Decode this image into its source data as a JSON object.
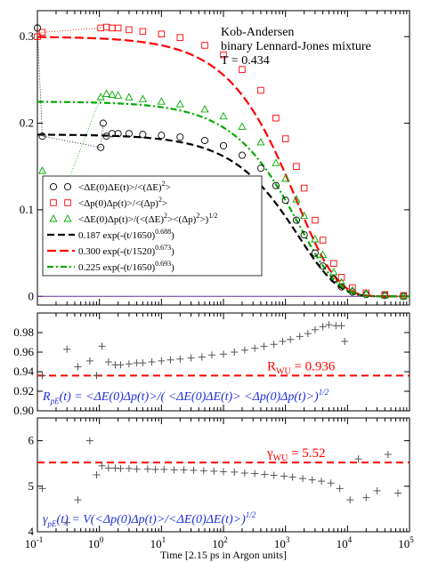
{
  "chart_data": [
    {
      "type": "scatter",
      "panel": "top",
      "title": "",
      "annotation_lines": [
        "Kob-Andersen",
        "binary Lennard-Jones mixture",
        "T = 0.434"
      ],
      "xscale": "log",
      "xlim": [
        0.1,
        100000
      ],
      "ylim": [
        -0.01,
        0.33
      ],
      "yticks": [
        0,
        0.1,
        0.2,
        0.3
      ],
      "ytick_labels": [
        "0",
        "0.1",
        "0.2",
        "0.3"
      ],
      "grid": false,
      "legend_position": "lower-left",
      "series": [
        {
          "name": "<ΔE(0)ΔE(t)>/<(ΔE)²>",
          "kind": "markers",
          "marker": "circle",
          "color": "#000000",
          "points": [
            [
              0.1,
              0.31
            ],
            [
              0.12,
              0.185
            ],
            [
              1.05,
              0.172
            ],
            [
              1.15,
              0.2
            ],
            [
              1.3,
              0.185
            ],
            [
              1.6,
              0.188
            ],
            [
              2,
              0.188
            ],
            [
              3,
              0.188
            ],
            [
              5,
              0.187
            ],
            [
              10,
              0.186
            ],
            [
              20,
              0.184
            ],
            [
              50,
              0.18
            ],
            [
              100,
              0.174
            ],
            [
              200,
              0.163
            ],
            [
              400,
              0.148
            ],
            [
              700,
              0.128
            ],
            [
              1000,
              0.111
            ],
            [
              1500,
              0.088
            ],
            [
              2000,
              0.071
            ],
            [
              3000,
              0.05
            ],
            [
              4000,
              0.035
            ],
            [
              6000,
              0.02
            ],
            [
              8000,
              0.011
            ],
            [
              12000,
              0.005
            ],
            [
              20000,
              0.002
            ],
            [
              40000,
              0.001
            ],
            [
              80000,
              0.0
            ]
          ]
        },
        {
          "name": "<Δp(0)Δp(t)>/<(Δp)²>",
          "kind": "markers",
          "marker": "square",
          "color": "#ff0000",
          "points": [
            [
              0.1,
              0.3
            ],
            [
              0.12,
              0.305
            ],
            [
              1.05,
              0.31
            ],
            [
              1.3,
              0.311
            ],
            [
              1.6,
              0.31
            ],
            [
              2,
              0.31
            ],
            [
              3,
              0.308
            ],
            [
              5,
              0.306
            ],
            [
              10,
              0.303
            ],
            [
              20,
              0.299
            ],
            [
              50,
              0.29
            ],
            [
              100,
              0.279
            ],
            [
              200,
              0.262
            ],
            [
              400,
              0.238
            ],
            [
              700,
              0.206
            ],
            [
              1000,
              0.182
            ],
            [
              1500,
              0.15
            ],
            [
              2000,
              0.125
            ],
            [
              3000,
              0.088
            ],
            [
              4000,
              0.065
            ],
            [
              6000,
              0.038
            ],
            [
              8000,
              0.022
            ],
            [
              12000,
              0.01
            ],
            [
              20000,
              0.004
            ],
            [
              40000,
              0.002
            ],
            [
              80000,
              0.001
            ]
          ]
        },
        {
          "name": "<ΔE(0)Δp(t)>/(<(ΔE)²><(Δp)²>)^1/2",
          "kind": "markers",
          "marker": "triangle",
          "color": "#00aa00",
          "points": [
            [
              0.12,
              0.145
            ],
            [
              0.2,
              0.1
            ],
            [
              0.3,
              0.13
            ],
            [
              1.05,
              0.23
            ],
            [
              1.3,
              0.234
            ],
            [
              1.6,
              0.233
            ],
            [
              2,
              0.232
            ],
            [
              3,
              0.23
            ],
            [
              5,
              0.228
            ],
            [
              10,
              0.225
            ],
            [
              20,
              0.222
            ],
            [
              50,
              0.216
            ],
            [
              100,
              0.208
            ],
            [
              200,
              0.196
            ],
            [
              400,
              0.178
            ],
            [
              700,
              0.154
            ],
            [
              1000,
              0.136
            ],
            [
              1500,
              0.112
            ],
            [
              2000,
              0.093
            ],
            [
              3000,
              0.066
            ],
            [
              4000,
              0.048
            ],
            [
              6000,
              0.028
            ],
            [
              8000,
              0.016
            ],
            [
              12000,
              0.007
            ],
            [
              20000,
              0.003
            ],
            [
              40000,
              0.001
            ],
            [
              80000,
              0.0
            ]
          ]
        },
        {
          "name": "0.187 exp(-(t/1650)^0.688)",
          "kind": "kww",
          "amp": 0.187,
          "tau": 1650,
          "beta": 0.688,
          "dash": "8,4",
          "color": "#000000"
        },
        {
          "name": "0.300 exp(-(t/1520)^0.673)",
          "kind": "kww",
          "amp": 0.3,
          "tau": 1520,
          "beta": 0.673,
          "dash": "10,4",
          "color": "#ff0000"
        },
        {
          "name": "0.225 exp(-(t/1650)^0.693)",
          "kind": "kww",
          "amp": 0.225,
          "tau": 1650,
          "beta": 0.693,
          "dash": "7,3,2,3",
          "color": "#00aa00"
        }
      ],
      "legend_entries": [
        {
          "text": "<ΔE(0)ΔE(t)>/<(ΔE)",
          "sup": "2",
          "tail": ">"
        },
        {
          "text": "<Δp(0)Δp(t)>/<(Δp)",
          "sup": "2",
          "tail": ">"
        },
        {
          "text": "<ΔE(0)Δp(t)>/(<(ΔE)",
          "sup": "2",
          "tail": "><(Δp)",
          "sup2": "2",
          "tail2": ">)",
          "sup3": "1/2"
        },
        {
          "text": "0.187 exp(-(t/1650)",
          "sup": "0.688",
          "tail": ")"
        },
        {
          "text": "0.300 exp(-(t/1520)",
          "sup": "0.673",
          "tail": ")"
        },
        {
          "text": "0.225 exp(-(t/1650)",
          "sup": "0.693",
          "tail": ")"
        }
      ]
    },
    {
      "type": "scatter",
      "panel": "middle",
      "xscale": "log",
      "xlim": [
        0.1,
        100000
      ],
      "ylim": [
        0.9,
        1.0
      ],
      "yticks": [
        0.9,
        0.92,
        0.94,
        0.96,
        0.98
      ],
      "ytick_labels": [
        "0.90",
        "0.92",
        "0.94",
        "0.96",
        "0.98"
      ],
      "reference_value": 0.936,
      "reference_label": "R",
      "reference_sub": "WU",
      "reference_text": " = 0.936",
      "formula": {
        "lhs": "R",
        "lhs_sub": "pE",
        "body": "(t) = <ΔE(0)Δp(t)>/( <ΔE(0)ΔE(t)> <Δp(0)Δp(t)>)",
        "sup": "1/2"
      },
      "series": [
        {
          "name": "",
          "kind": "markers",
          "marker": "plus",
          "color": "#555555",
          "points": [
            [
              0.12,
              0.936
            ],
            [
              0.3,
              0.963
            ],
            [
              0.45,
              0.945
            ],
            [
              0.7,
              0.951
            ],
            [
              0.9,
              0.936
            ],
            [
              1.1,
              0.966
            ],
            [
              1.4,
              0.95
            ],
            [
              1.8,
              0.947
            ],
            [
              2.2,
              0.947
            ],
            [
              3,
              0.948
            ],
            [
              4,
              0.949
            ],
            [
              5,
              0.949
            ],
            [
              7,
              0.95
            ],
            [
              10,
              0.951
            ],
            [
              14,
              0.952
            ],
            [
              20,
              0.953
            ],
            [
              30,
              0.954
            ],
            [
              45,
              0.955
            ],
            [
              65,
              0.957
            ],
            [
              100,
              0.958
            ],
            [
              150,
              0.96
            ],
            [
              220,
              0.962
            ],
            [
              320,
              0.964
            ],
            [
              450,
              0.966
            ],
            [
              650,
              0.968
            ],
            [
              900,
              0.971
            ],
            [
              1200,
              0.973
            ],
            [
              1700,
              0.976
            ],
            [
              2300,
              0.979
            ],
            [
              3000,
              0.983
            ],
            [
              4000,
              0.986
            ],
            [
              5000,
              0.988
            ],
            [
              6500,
              0.987
            ],
            [
              8000,
              0.987
            ],
            [
              9000,
              0.971
            ]
          ]
        }
      ]
    },
    {
      "type": "scatter",
      "panel": "bottom",
      "xscale": "log",
      "xlim": [
        0.1,
        100000
      ],
      "ylim": [
        4,
        6.5
      ],
      "yticks": [
        4,
        5,
        6
      ],
      "ytick_labels": [
        "4",
        "5",
        "6"
      ],
      "xticks": [
        0.1,
        1,
        10,
        100,
        1000,
        10000,
        100000
      ],
      "xtick_labels": [
        {
          "base": "10",
          "exp": "-1"
        },
        {
          "base": "10",
          "exp": "0"
        },
        {
          "base": "10",
          "exp": "1"
        },
        {
          "base": "10",
          "exp": "2"
        },
        {
          "base": "10",
          "exp": "3"
        },
        {
          "base": "10",
          "exp": "4"
        },
        {
          "base": "10",
          "exp": "5"
        }
      ],
      "xlabel": "Time [2.15 ps in Argon units]",
      "reference_value": 5.52,
      "reference_label": "γ",
      "reference_sub": "WU",
      "reference_text": " = 5.52",
      "formula": {
        "lhs": "γ",
        "lhs_sub": "pE",
        "body": "(t) = V(<Δp(0)Δp(t)>/<ΔE(0)ΔE(t)>)",
        "sup": "1/2"
      },
      "series": [
        {
          "name": "",
          "kind": "markers",
          "marker": "plus",
          "color": "#555555",
          "points": [
            [
              0.12,
              4.95
            ],
            [
              0.3,
              4.2
            ],
            [
              0.45,
              4.7
            ],
            [
              0.7,
              6.0
            ],
            [
              0.9,
              5.25
            ],
            [
              1.1,
              5.45
            ],
            [
              1.4,
              5.4
            ],
            [
              1.8,
              5.4
            ],
            [
              2.2,
              5.39
            ],
            [
              3,
              5.39
            ],
            [
              4,
              5.38
            ],
            [
              6,
              5.38
            ],
            [
              8,
              5.37
            ],
            [
              11,
              5.37
            ],
            [
              16,
              5.36
            ],
            [
              23,
              5.36
            ],
            [
              33,
              5.35
            ],
            [
              48,
              5.34
            ],
            [
              70,
              5.33
            ],
            [
              100,
              5.32
            ],
            [
              150,
              5.31
            ],
            [
              220,
              5.29
            ],
            [
              320,
              5.28
            ],
            [
              460,
              5.26
            ],
            [
              650,
              5.24
            ],
            [
              950,
              5.22
            ],
            [
              1300,
              5.2
            ],
            [
              1900,
              5.17
            ],
            [
              2700,
              5.14
            ],
            [
              3800,
              5.11
            ],
            [
              5400,
              5.07
            ],
            [
              7500,
              4.95
            ],
            [
              11000,
              4.7
            ],
            [
              15000,
              5.6
            ],
            [
              20000,
              4.75
            ],
            [
              30000,
              4.9
            ],
            [
              45000,
              5.7
            ],
            [
              65000,
              4.85
            ]
          ]
        }
      ]
    }
  ]
}
